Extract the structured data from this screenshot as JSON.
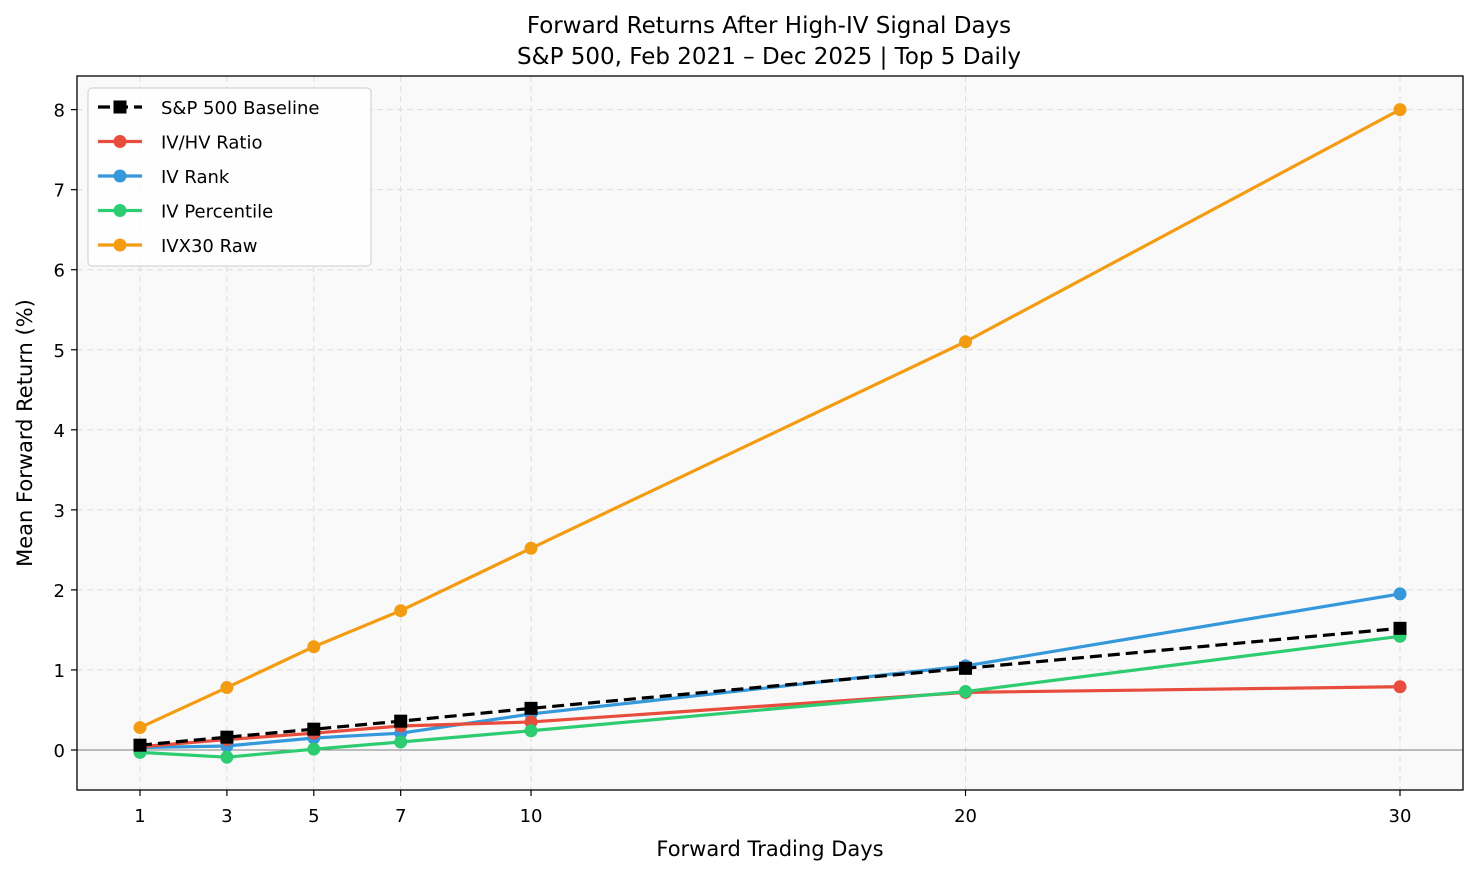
{
  "chart_data": {
    "type": "line",
    "title": "Forward Returns After High-IV Signal Days",
    "subtitle": "S&P 500, Feb 2021 – Dec 2025 | Top 5 Daily",
    "xlabel": "Forward Trading Days",
    "ylabel": "Mean Forward Return (%)",
    "x": [
      1,
      3,
      5,
      7,
      10,
      20,
      30
    ],
    "xlim": [
      -0.45,
      31.45
    ],
    "ylim": [
      -0.5,
      8.42
    ],
    "xticks": [
      "1",
      "3",
      "5",
      "7",
      "10",
      "20",
      "30"
    ],
    "yticks": [
      0,
      1,
      2,
      3,
      4,
      5,
      6,
      7,
      8
    ],
    "grid": true,
    "legend_position": "upper-left",
    "series": [
      {
        "name": "IVX30 Raw",
        "color": "#f39c12",
        "style": "solid",
        "marker": "circle",
        "values": [
          0.28,
          0.78,
          1.29,
          1.74,
          2.52,
          5.1,
          8.0
        ]
      },
      {
        "name": "IV Rank",
        "color": "#3498db",
        "style": "solid",
        "marker": "circle",
        "values": [
          0.03,
          0.05,
          0.15,
          0.21,
          0.45,
          1.05,
          1.95
        ]
      },
      {
        "name": "IV/HV Ratio",
        "color": "#e74c3c",
        "style": "solid",
        "marker": "circle",
        "values": [
          0.04,
          0.13,
          0.21,
          0.3,
          0.35,
          0.72,
          0.79
        ]
      },
      {
        "name": "IV Percentile",
        "color": "#2ecc71",
        "style": "solid",
        "marker": "circle",
        "values": [
          -0.03,
          -0.09,
          0.01,
          0.1,
          0.24,
          0.73,
          1.42
        ]
      },
      {
        "name": "S&P 500 Baseline",
        "color": "#000000",
        "style": "dashed",
        "marker": "square",
        "values": [
          0.06,
          0.16,
          0.26,
          0.36,
          0.52,
          1.02,
          1.52
        ]
      }
    ],
    "legend_order": [
      "S&P 500 Baseline",
      "IV/HV Ratio",
      "IV Rank",
      "IV Percentile",
      "IVX30 Raw"
    ]
  }
}
